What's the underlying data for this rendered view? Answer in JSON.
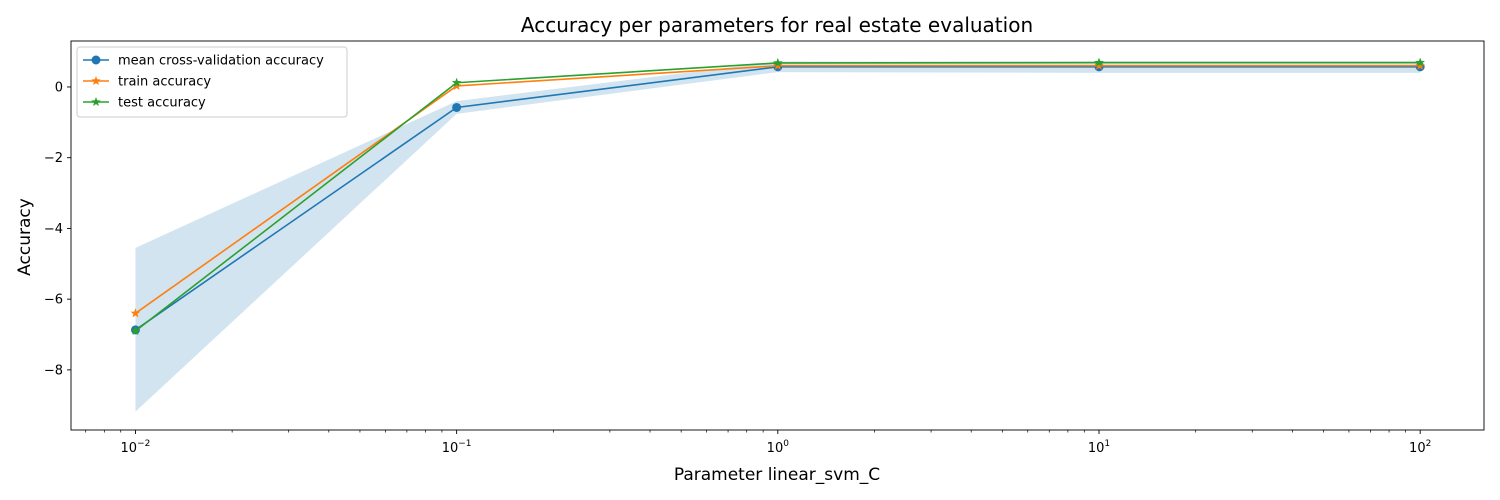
{
  "chart_data": {
    "type": "line",
    "title": "Accuracy per parameters for real estate evaluation",
    "xlabel": "Parameter linear_svm_C",
    "ylabel": "Accuracy",
    "xscale": "log",
    "x": [
      0.01,
      0.1,
      1,
      10,
      100
    ],
    "xlim": [
      0.0063,
      158
    ],
    "ylim": [
      -9.7,
      1.3
    ],
    "x_ticks": [
      {
        "value": 0.01,
        "base": "10",
        "exp": "−2"
      },
      {
        "value": 0.1,
        "base": "10",
        "exp": "−1"
      },
      {
        "value": 1,
        "base": "10",
        "exp": "0"
      },
      {
        "value": 10,
        "base": "10",
        "exp": "1"
      },
      {
        "value": 100,
        "base": "10",
        "exp": "2"
      }
    ],
    "y_ticks": [
      {
        "value": 0,
        "label": "0"
      },
      {
        "value": -2,
        "label": "−2"
      },
      {
        "value": -4,
        "label": "−4"
      },
      {
        "value": -6,
        "label": "−6"
      },
      {
        "value": -8,
        "label": "−8"
      }
    ],
    "band": {
      "upper": [
        -4.55,
        -0.4,
        0.72,
        0.72,
        0.72
      ],
      "lower": [
        -9.18,
        -0.76,
        0.42,
        0.4,
        0.4
      ],
      "color": "#1f77b4"
    },
    "series": [
      {
        "name": "mean cross-validation accuracy",
        "values": [
          -6.87,
          -0.58,
          0.57,
          0.57,
          0.57
        ],
        "color": "#1f77b4",
        "marker": "circle"
      },
      {
        "name": "train accuracy",
        "values": [
          -6.4,
          0.03,
          0.6,
          0.6,
          0.6
        ],
        "color": "#ff7f0e",
        "marker": "star"
      },
      {
        "name": "test accuracy",
        "values": [
          -6.9,
          0.12,
          0.68,
          0.69,
          0.69
        ],
        "color": "#2ca02c",
        "marker": "star"
      }
    ],
    "legend_position": "top-left",
    "grid": false
  }
}
